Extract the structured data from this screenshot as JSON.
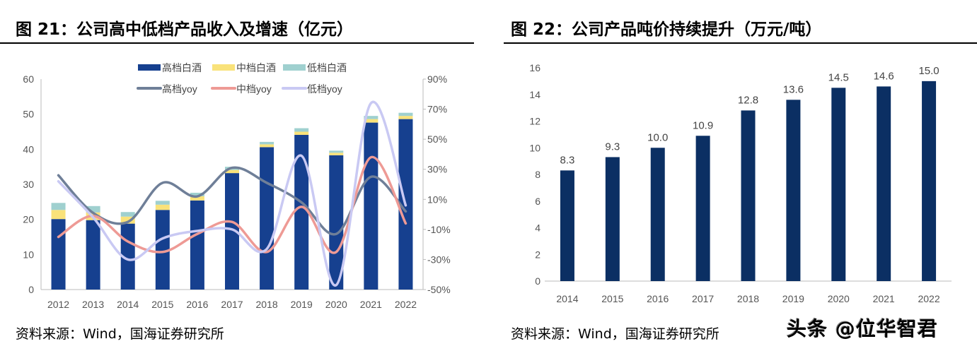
{
  "left": {
    "title": "图 21：公司高中低档产品收入及增速（亿元）",
    "source": "资料来源：Wind，国海证券研究所"
  },
  "right": {
    "title": "图 22：公司产品吨价持续提升（万元/吨）",
    "source": "资料来源：Wind，国海证券研究所"
  },
  "watermark": "头条 @位华智君",
  "chart_data": [
    {
      "type": "bar",
      "stacked": true,
      "categories": [
        "2012",
        "2013",
        "2014",
        "2015",
        "2016",
        "2017",
        "2018",
        "2019",
        "2020",
        "2021",
        "2022"
      ],
      "ylim": [
        0,
        60
      ],
      "yticks": [
        "0",
        "10",
        "20",
        "30",
        "40",
        "50",
        "60"
      ],
      "y2lim": [
        -50,
        90
      ],
      "y2ticks": [
        "-50%",
        "-30%",
        "-10%",
        "10%",
        "30%",
        "50%",
        "70%",
        "90%"
      ],
      "legend_placement": "top",
      "series": [
        {
          "name": "高档白酒",
          "axis": "left",
          "color": "#16408f",
          "values": [
            20.1,
            19.8,
            18.8,
            22.7,
            25.4,
            33.2,
            40.6,
            44.1,
            38.3,
            47.6,
            48.6
          ]
        },
        {
          "name": "中档白酒",
          "axis": "left",
          "color": "#f9e27a",
          "values": [
            2.6,
            2.2,
            2.0,
            1.5,
            1.2,
            0.9,
            0.8,
            0.9,
            0.7,
            1.0,
            0.9
          ]
        },
        {
          "name": "低档白酒",
          "axis": "left",
          "color": "#9fd0cf",
          "values": [
            2.0,
            1.8,
            1.3,
            1.1,
            1.0,
            0.9,
            0.7,
            1.0,
            0.6,
            0.9,
            0.9
          ]
        },
        {
          "name": "高档yoy",
          "type": "line",
          "axis": "right",
          "color": "#6f7f98",
          "values": [
            26,
            1,
            -5,
            21,
            12,
            31,
            21,
            8,
            -13,
            25,
            2
          ]
        },
        {
          "name": "中档yoy",
          "type": "line",
          "axis": "right",
          "color": "#ee9a95",
          "values": [
            -15,
            -1,
            -18,
            -25,
            -13,
            -5,
            -25,
            5,
            -25,
            38,
            -6
          ]
        },
        {
          "name": "低档yoy",
          "type": "line",
          "axis": "right",
          "color": "#c9c9f3",
          "values": [
            22,
            -2,
            -30,
            -16,
            -11,
            -10,
            -23,
            39,
            -47,
            74,
            6
          ]
        }
      ]
    },
    {
      "type": "bar",
      "categories": [
        "2014",
        "2015",
        "2016",
        "2017",
        "2018",
        "2019",
        "2020",
        "2021",
        "2022"
      ],
      "values": [
        8.3,
        9.3,
        10.0,
        10.9,
        12.8,
        13.6,
        14.5,
        14.6,
        15.0
      ],
      "labels": [
        "8.3",
        "9.3",
        "10.0",
        "10.9",
        "12.8",
        "13.6",
        "14.5",
        "14.6",
        "15.0"
      ],
      "ylim": [
        0,
        16
      ],
      "yticks": [
        "0",
        "2",
        "4",
        "6",
        "8",
        "10",
        "12",
        "14",
        "16"
      ],
      "color": "#0b2f63"
    }
  ]
}
